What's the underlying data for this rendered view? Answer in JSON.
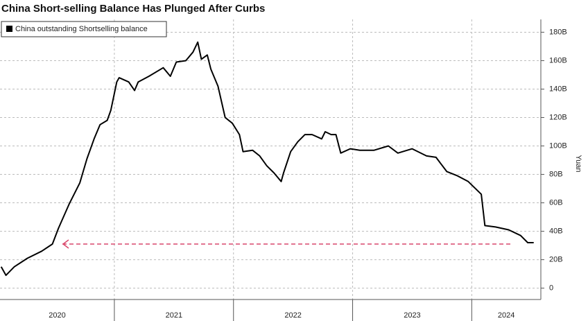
{
  "chart_data": {
    "type": "line",
    "title": "China Short-selling Balance Has Plunged After Curbs",
    "y_label": "Yuan",
    "legend_position": "upper left",
    "grid": true,
    "xlim": [
      2020.04,
      2024.58
    ],
    "ylim": [
      -8,
      189
    ],
    "xticks": [
      2020,
      2021,
      2022,
      2023,
      2024
    ],
    "yticks": [
      0,
      {
        "value": 20,
        "label": "20B"
      },
      {
        "value": 40,
        "label": "40B"
      },
      {
        "value": 60,
        "label": "60B"
      },
      {
        "value": 80,
        "label": "80B"
      },
      {
        "value": 100,
        "label": "100B"
      },
      {
        "value": 120,
        "label": "120B"
      },
      {
        "value": 140,
        "label": "140B"
      },
      {
        "value": 160,
        "label": "160B"
      },
      {
        "value": 180,
        "label": "180B"
      }
    ],
    "series": [
      {
        "name": "China outstanding Shortselling balance",
        "color": "#000000",
        "x": [
          2020.05,
          2020.09,
          2020.16,
          2020.27,
          2020.39,
          2020.48,
          2020.53,
          2020.62,
          2020.71,
          2020.77,
          2020.83,
          2020.88,
          2020.94,
          2020.97,
          2021.02,
          2021.04,
          2021.12,
          2021.17,
          2021.2,
          2021.29,
          2021.41,
          2021.47,
          2021.52,
          2021.6,
          2021.66,
          2021.7,
          2021.73,
          2021.78,
          2021.81,
          2021.87,
          2021.93,
          2021.99,
          2022.05,
          2022.08,
          2022.16,
          2022.22,
          2022.28,
          2022.34,
          2022.4,
          2022.42,
          2022.48,
          2022.54,
          2022.6,
          2022.66,
          2022.74,
          2022.77,
          2022.82,
          2022.86,
          2022.9,
          2022.98,
          2023.06,
          2023.18,
          2023.3,
          2023.38,
          2023.5,
          2023.62,
          2023.7,
          2023.79,
          2023.88,
          2023.97,
          2024.08,
          2024.11,
          2024.2,
          2024.31,
          2024.41,
          2024.47,
          2024.52
        ],
        "values": [
          15,
          9,
          15,
          21,
          26,
          31,
          42,
          59,
          74,
          91,
          105,
          115,
          118,
          125,
          145,
          148,
          145,
          139,
          145,
          149,
          155,
          149,
          159,
          160,
          166,
          173,
          161,
          164,
          154,
          142,
          120,
          116,
          108,
          96,
          97,
          93,
          86,
          81,
          75,
          81,
          96,
          103,
          108,
          108,
          105,
          110,
          108,
          108,
          95,
          98,
          97,
          97,
          100,
          95,
          98,
          93,
          92,
          82,
          79,
          75,
          66,
          44,
          43,
          41,
          37,
          32,
          32
        ]
      }
    ]
  }
}
